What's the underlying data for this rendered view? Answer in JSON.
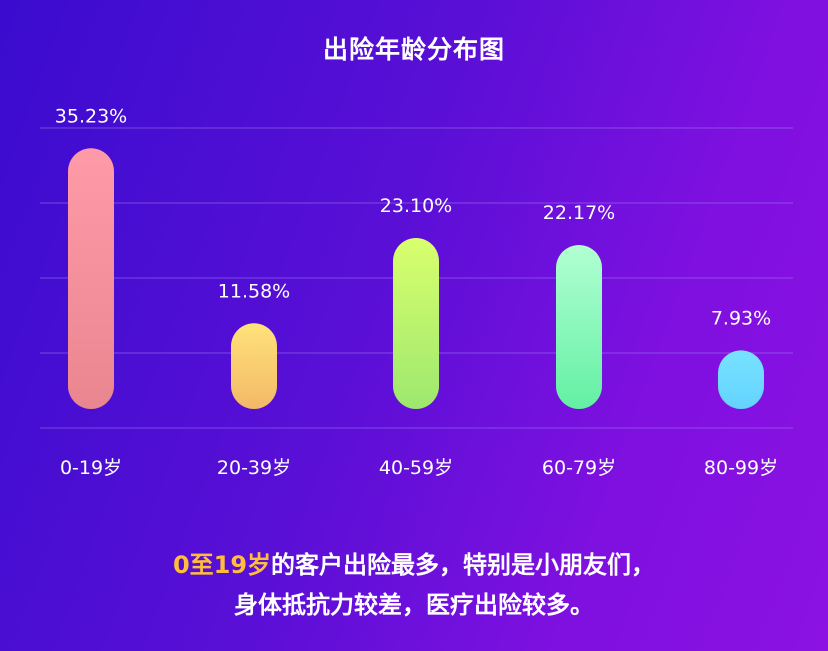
{
  "chart_data": {
    "type": "bar",
    "title": "出险年龄分布图",
    "categories": [
      "0-19岁",
      "20-39岁",
      "40-59岁",
      "60-79岁",
      "80-99岁"
    ],
    "values": [
      35.23,
      11.58,
      23.1,
      22.17,
      7.93
    ],
    "value_labels": [
      "35.23%",
      "11.58%",
      "23.10%",
      "22.17%",
      "7.93%"
    ],
    "unit": "%",
    "ylim": [
      0,
      40
    ],
    "grid": true,
    "legend": "none",
    "bar_gradients": [
      [
        "#ff9aa8",
        "#e9868f"
      ],
      [
        "#ffe27a",
        "#f3b967"
      ],
      [
        "#d9ff6e",
        "#9de86e"
      ],
      [
        "#b2ffd2",
        "#63f0a4"
      ],
      [
        "#78e2ff",
        "#63d3ff"
      ]
    ],
    "grid_color": "#9c7cf0",
    "label_color": "#ffffff"
  },
  "caption": {
    "highlight": "0至19岁",
    "line1_rest": "的客户出险最多，特别是小朋友们，",
    "line2": "身体抵抗力较差，医疗出险较多。",
    "highlight_color": "#ffbd3b"
  }
}
